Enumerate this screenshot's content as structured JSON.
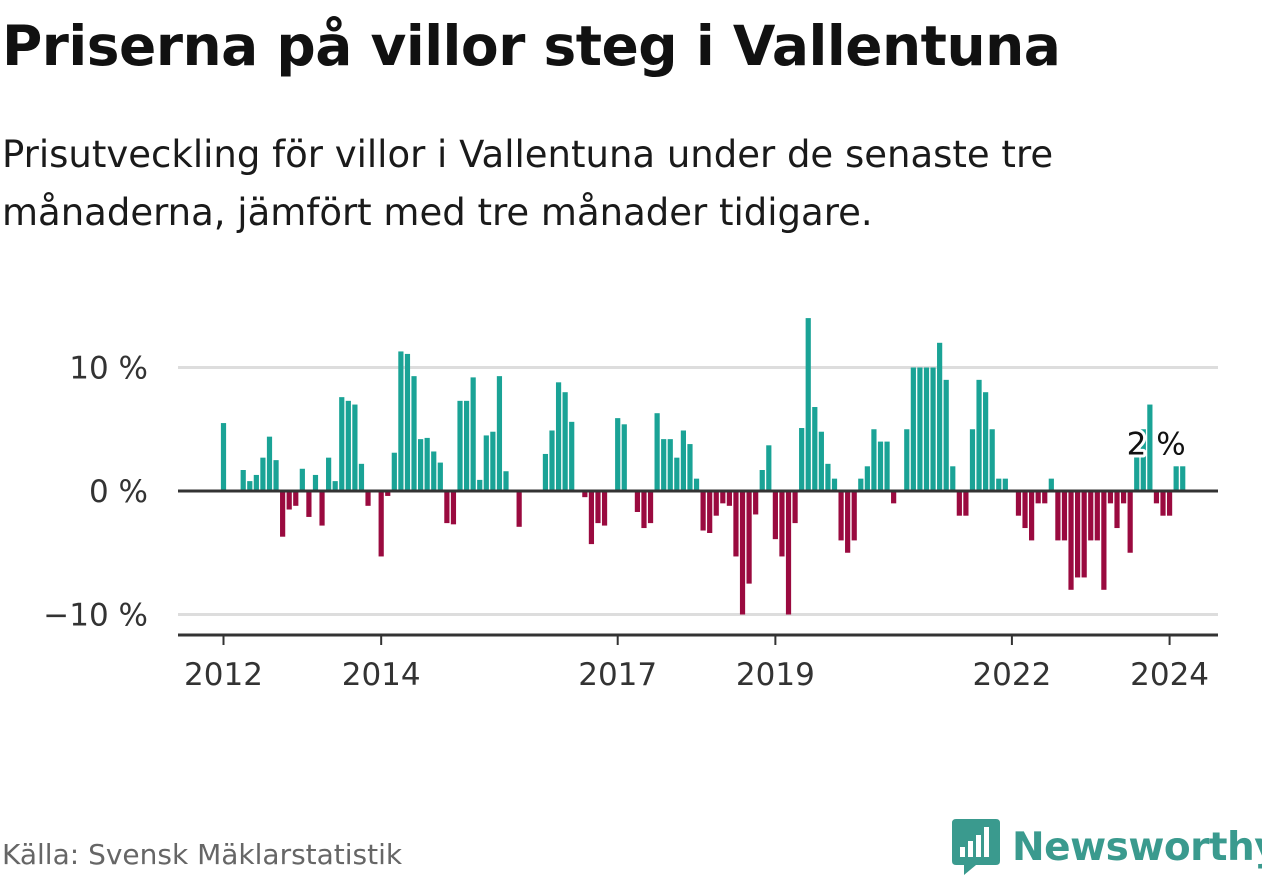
{
  "title": "Priserna på villor steg i Vallentuna",
  "subtitle": "Prisutveckling för villor i Vallentuna under de senaste tre månaderna, jämfört med tre månader tidigare.",
  "source": "Källa: Svensk Mäklarstatistik",
  "brand": "Newsworthy",
  "colors": {
    "positive": "#1aa396",
    "negative": "#9a0a3f",
    "brand": "#3a9a8e",
    "grid": "#dddddd",
    "axis": "#333333"
  },
  "chart_data": {
    "type": "bar",
    "title": "Priserna på villor steg i Vallentuna",
    "xlabel": "",
    "ylabel": "",
    "ylim": [
      -11.5,
      14.5
    ],
    "yticks": [
      {
        "value": 10,
        "label": "10 %"
      },
      {
        "value": 0,
        "label": "0 %"
      },
      {
        "value": -10,
        "label": "−10 %"
      }
    ],
    "xticks": [
      {
        "index": 0,
        "label": "2012"
      },
      {
        "index": 24,
        "label": "2014"
      },
      {
        "index": 60,
        "label": "2017"
      },
      {
        "index": 84,
        "label": "2019"
      },
      {
        "index": 120,
        "label": "2022"
      },
      {
        "index": 144,
        "label": "2024"
      }
    ],
    "start": "2012-01",
    "frequency": "monthly",
    "values": [
      5.5,
      0,
      0,
      1.7,
      0.8,
      1.3,
      2.7,
      4.4,
      2.5,
      -3.7,
      -1.5,
      -1.2,
      1.8,
      -2.1,
      1.3,
      -2.8,
      2.7,
      0.8,
      7.6,
      7.3,
      7.0,
      2.2,
      -1.2,
      0,
      -5.3,
      -0.4,
      3.1,
      11.3,
      11.1,
      9.3,
      4.2,
      4.3,
      3.2,
      2.3,
      -2.6,
      -2.7,
      7.3,
      7.3,
      9.2,
      0.9,
      4.5,
      4.8,
      9.3,
      1.6,
      0,
      -2.9,
      0,
      0,
      0,
      3.0,
      4.9,
      8.8,
      8.0,
      5.6,
      0,
      -0.5,
      -4.3,
      -2.6,
      -2.8,
      0,
      5.9,
      5.4,
      0,
      -1.7,
      -3.0,
      -2.6,
      6.3,
      4.2,
      4.2,
      2.7,
      4.9,
      3.8,
      1.0,
      -3.2,
      -3.4,
      -2.0,
      -1.0,
      -1.2,
      -5.3,
      -10.0,
      -7.5,
      -1.9,
      1.7,
      3.7,
      -3.9,
      -5.3,
      -10.0,
      -2.6,
      5.1,
      14.0,
      6.8,
      4.8,
      2.2,
      1.0,
      -4.0,
      -5.0,
      -4.0,
      1.0,
      2.0,
      5.0,
      4.0,
      4.0,
      -1.0,
      0,
      5.0,
      10.0,
      10.0,
      10.0,
      10.0,
      12.0,
      9.0,
      2.0,
      -2.0,
      -2.0,
      5.0,
      9.0,
      8.0,
      5.0,
      1.0,
      1.0,
      0,
      -2.0,
      -3.0,
      -4.0,
      -1.0,
      -1.0,
      1.0,
      -4.0,
      -4.0,
      -8.0,
      -7.0,
      -7.0,
      -4.0,
      -4.0,
      -8.0,
      -1.0,
      -3.0,
      -1.0,
      -5.0,
      3.0,
      5.0,
      7.0,
      -1.0,
      -2.0,
      -2.0,
      2.0,
      2.0
    ],
    "last_label": "2 %"
  }
}
